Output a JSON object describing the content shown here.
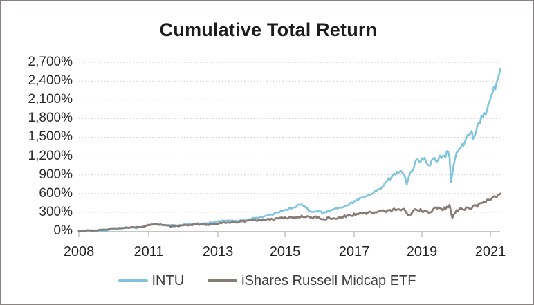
{
  "chart_data": {
    "type": "line",
    "title": "Cumulative Total Return",
    "unit": "percent",
    "grid": "horizontal-dotted",
    "legend_position": "bottom",
    "x_axis": {
      "tick_labels": [
        "2008",
        "2011",
        "2013",
        "2015",
        "2017",
        "2019",
        "2021"
      ]
    },
    "y_axis": {
      "tick_values": [
        0,
        300,
        600,
        900,
        1200,
        1500,
        1800,
        2100,
        2400,
        2700
      ],
      "tick_labels": [
        "0%",
        "300%",
        "600%",
        "900%",
        "1,200%",
        "1,500%",
        "1,800%",
        "2,100%",
        "2,400%",
        "2,700%"
      ],
      "ylim": [
        0,
        2700
      ]
    },
    "series": [
      {
        "name": "INTU",
        "color": "#7ec4de",
        "points": [
          [
            2008,
            0
          ],
          [
            2008.3,
            6
          ],
          [
            2008.6,
            10
          ],
          [
            2008.9,
            -5
          ],
          [
            2009.1,
            -8
          ],
          [
            2009.25,
            12
          ],
          [
            2009.4,
            35
          ],
          [
            2009.6,
            30
          ],
          [
            2009.9,
            45
          ],
          [
            2010.2,
            55
          ],
          [
            2010.5,
            48
          ],
          [
            2010.8,
            75
          ],
          [
            2011,
            100
          ],
          [
            2011.25,
            108
          ],
          [
            2011.45,
            85
          ],
          [
            2011.65,
            95
          ],
          [
            2011.85,
            88
          ],
          [
            2012.1,
            108
          ],
          [
            2012.4,
            118
          ],
          [
            2012.7,
            125
          ],
          [
            2013,
            152
          ],
          [
            2013.3,
            168
          ],
          [
            2013.6,
            160
          ],
          [
            2013.9,
            188
          ],
          [
            2014.2,
            215
          ],
          [
            2014.5,
            240
          ],
          [
            2014.75,
            290
          ],
          [
            2015,
            330
          ],
          [
            2015.2,
            365
          ],
          [
            2015.45,
            425
          ],
          [
            2015.6,
            385
          ],
          [
            2015.75,
            295
          ],
          [
            2015.9,
            330
          ],
          [
            2016.1,
            290
          ],
          [
            2016.35,
            330
          ],
          [
            2016.6,
            370
          ],
          [
            2016.85,
            420
          ],
          [
            2017,
            465
          ],
          [
            2017.15,
            510
          ],
          [
            2017.3,
            545
          ],
          [
            2017.45,
            590
          ],
          [
            2017.6,
            640
          ],
          [
            2017.8,
            700
          ],
          [
            2017.97,
            810
          ],
          [
            2018.1,
            870
          ],
          [
            2018.3,
            950
          ],
          [
            2018.4,
            985
          ],
          [
            2018.48,
            900
          ],
          [
            2018.55,
            760
          ],
          [
            2018.65,
            900
          ],
          [
            2018.78,
            1050
          ],
          [
            2018.86,
            1150
          ],
          [
            2018.96,
            1130
          ],
          [
            2019.08,
            1180
          ],
          [
            2019.2,
            1040
          ],
          [
            2019.35,
            1150
          ],
          [
            2019.44,
            1100
          ],
          [
            2019.55,
            1200
          ],
          [
            2019.65,
            1180
          ],
          [
            2019.75,
            1260
          ],
          [
            2019.8,
            1280
          ],
          [
            2019.85,
            790
          ],
          [
            2019.9,
            1000
          ],
          [
            2020,
            1220
          ],
          [
            2020.05,
            1270
          ],
          [
            2020.15,
            1340
          ],
          [
            2020.3,
            1500
          ],
          [
            2020.42,
            1600
          ],
          [
            2020.5,
            1500
          ],
          [
            2020.65,
            1700
          ],
          [
            2020.8,
            1900
          ],
          [
            2020.86,
            1850
          ],
          [
            2021,
            2100
          ],
          [
            2021.08,
            2290
          ],
          [
            2021.12,
            2240
          ],
          [
            2021.18,
            2400
          ],
          [
            2021.24,
            2490
          ],
          [
            2021.3,
            2600
          ]
        ]
      },
      {
        "name": "iShares Russell Midcap ETF",
        "color": "#877b75",
        "points": [
          [
            2008,
            0
          ],
          [
            2008.3,
            8
          ],
          [
            2008.6,
            5
          ],
          [
            2008.9,
            15
          ],
          [
            2009.2,
            25
          ],
          [
            2009.4,
            38
          ],
          [
            2009.6,
            45
          ],
          [
            2009.8,
            40
          ],
          [
            2010.1,
            55
          ],
          [
            2010.4,
            65
          ],
          [
            2010.7,
            60
          ],
          [
            2011,
            95
          ],
          [
            2011.2,
            108
          ],
          [
            2011.4,
            100
          ],
          [
            2011.6,
            80
          ],
          [
            2011.75,
            72
          ],
          [
            2011.9,
            85
          ],
          [
            2012.1,
            95
          ],
          [
            2012.4,
            108
          ],
          [
            2012.7,
            102
          ],
          [
            2013,
            118
          ],
          [
            2013.3,
            135
          ],
          [
            2013.6,
            148
          ],
          [
            2013.9,
            162
          ],
          [
            2014.2,
            175
          ],
          [
            2014.5,
            188
          ],
          [
            2014.8,
            196
          ],
          [
            2015.1,
            210
          ],
          [
            2015.35,
            228
          ],
          [
            2015.55,
            238
          ],
          [
            2015.75,
            215
          ],
          [
            2015.95,
            225
          ],
          [
            2016.1,
            182
          ],
          [
            2016.25,
            212
          ],
          [
            2016.45,
            202
          ],
          [
            2016.65,
            228
          ],
          [
            2016.85,
            248
          ],
          [
            2017,
            262
          ],
          [
            2017.25,
            278
          ],
          [
            2017.5,
            295
          ],
          [
            2017.75,
            310
          ],
          [
            2018,
            320
          ],
          [
            2018.2,
            340
          ],
          [
            2018.35,
            332
          ],
          [
            2018.5,
            350
          ],
          [
            2018.6,
            230
          ],
          [
            2018.75,
            330
          ],
          [
            2019,
            330
          ],
          [
            2019.2,
            300
          ],
          [
            2019.4,
            360
          ],
          [
            2019.6,
            350
          ],
          [
            2019.75,
            385
          ],
          [
            2019.82,
            415
          ],
          [
            2019.88,
            200
          ],
          [
            2019.95,
            285
          ],
          [
            2020.08,
            345
          ],
          [
            2020.2,
            365
          ],
          [
            2020.35,
            355
          ],
          [
            2020.5,
            385
          ],
          [
            2020.62,
            410
          ],
          [
            2020.75,
            440
          ],
          [
            2020.85,
            470
          ],
          [
            2020.95,
            500
          ],
          [
            2021.05,
            530
          ],
          [
            2021.15,
            555
          ],
          [
            2021.22,
            575
          ],
          [
            2021.3,
            600
          ]
        ]
      }
    ]
  }
}
